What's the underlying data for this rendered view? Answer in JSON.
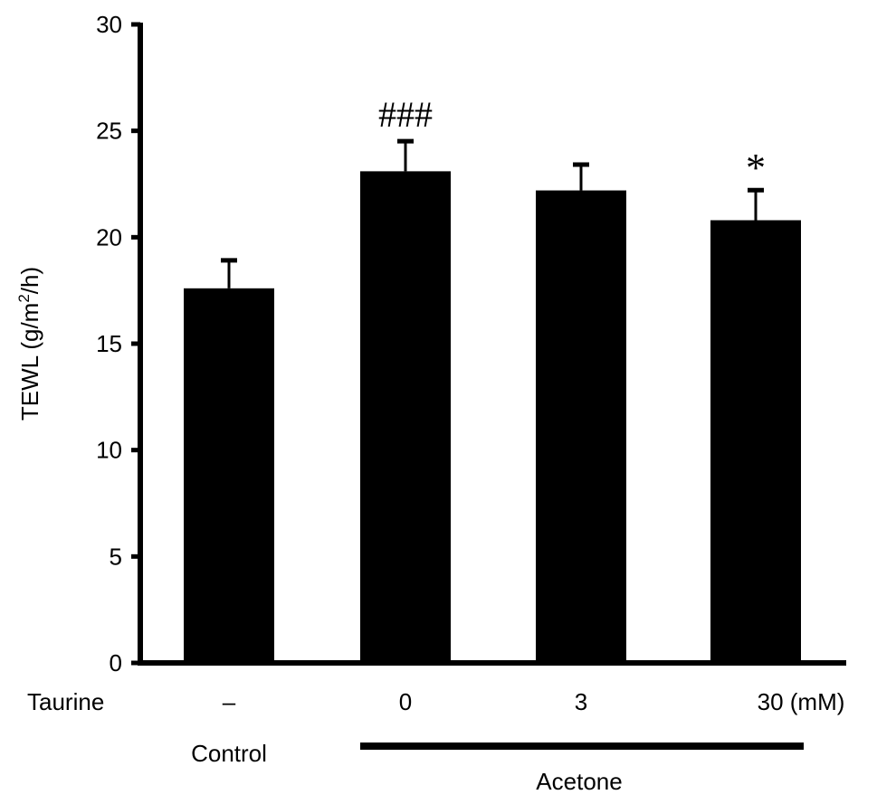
{
  "chart_data": {
    "type": "bar",
    "title": "",
    "ylabel": "TEWL (g/m²/h)",
    "ylabel_parts": {
      "main": "TEWL (g/m",
      "sup": "2",
      "end": "/h)"
    },
    "ylim": [
      0,
      30
    ],
    "yticks": [
      0,
      5,
      10,
      15,
      20,
      25,
      30
    ],
    "row_label": "Taurine",
    "categories": [
      "–",
      "0",
      "3",
      "30 (mM)"
    ],
    "values": [
      17.6,
      23.1,
      22.2,
      20.8
    ],
    "errors": [
      1.4,
      1.5,
      1.3,
      1.5
    ],
    "annotations": [
      "",
      "###",
      "",
      "*"
    ],
    "group_labels": {
      "control": "Control",
      "acetone": "Acetone"
    },
    "bar_color": "#000000",
    "grid": false
  }
}
